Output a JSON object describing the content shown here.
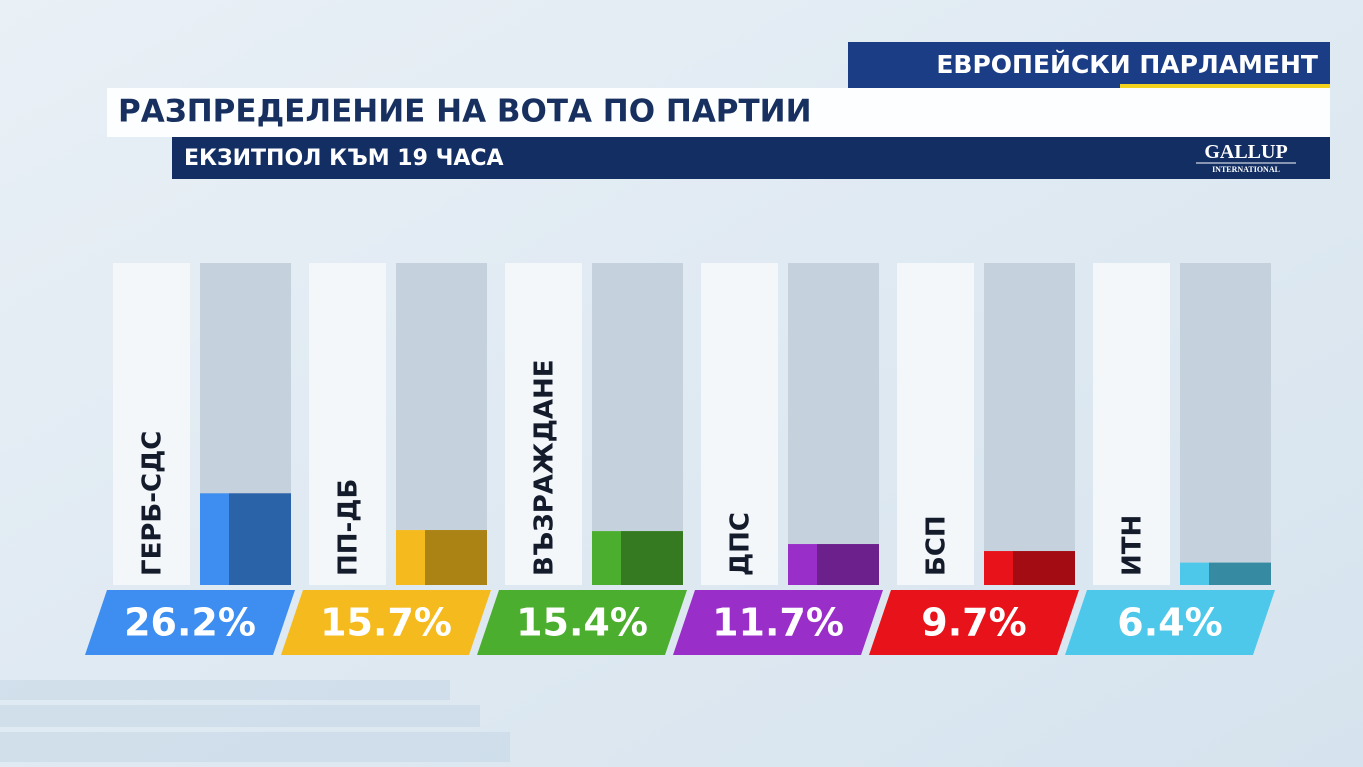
{
  "header": {
    "section": "ЕВРОПЕЙСКИ ПАРЛАМЕНТ",
    "title": "РАЗПРЕДЕЛЕНИЕ НА ВОТА ПО ПАРТИИ",
    "subtitle": "ЕКЗИТПОЛ КЪМ 19 ЧАСА",
    "logo": "GALLUP",
    "logo_sub": "INTERNATIONAL"
  },
  "chart_data": {
    "type": "bar",
    "categories": [
      "ГЕРБ-СДС",
      "ПП-ДБ",
      "ВЪЗРАЖДАНЕ",
      "ДПС",
      "БСП",
      "ИТН"
    ],
    "values": [
      26.2,
      15.7,
      15.4,
      11.7,
      9.7,
      6.4
    ],
    "value_labels": [
      "26.2%",
      "15.7%",
      "15.4%",
      "11.7%",
      "9.7%",
      "6.4%"
    ],
    "colors": [
      "#3d8ef0",
      "#f5bb1e",
      "#4cae2e",
      "#9a2ec8",
      "#e8121a",
      "#4ec8ea"
    ]
  }
}
